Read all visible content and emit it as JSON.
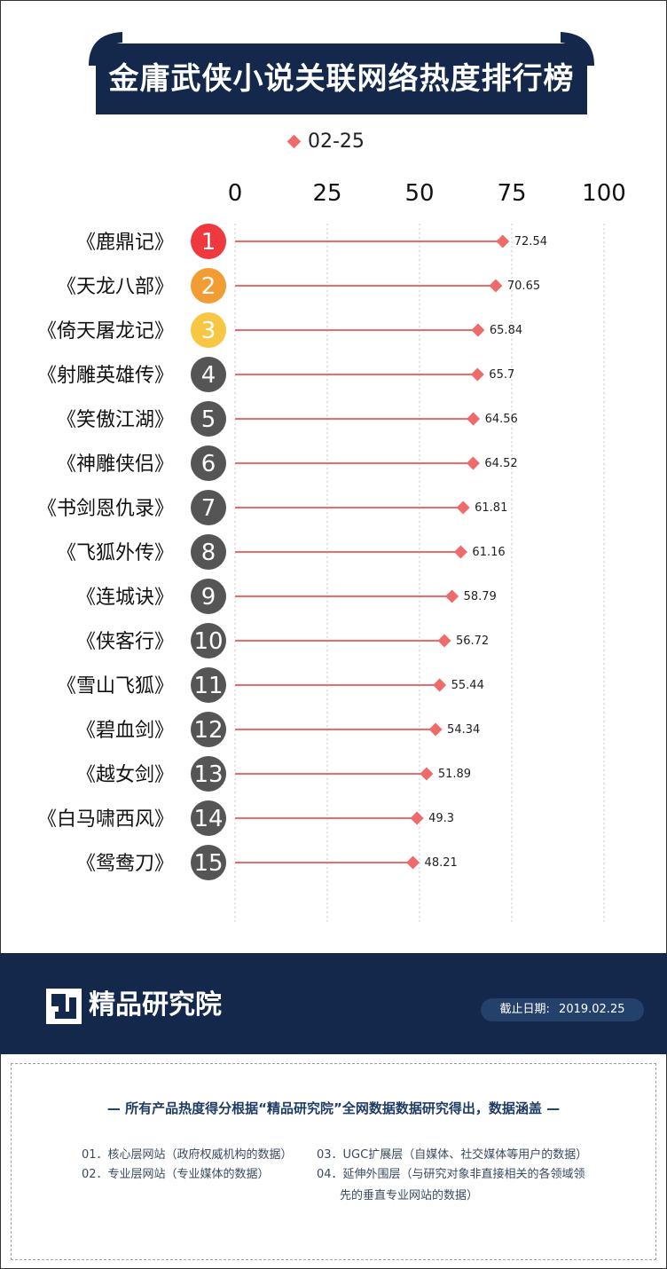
{
  "header": {
    "title": "金庸武侠小说关联网络热度排行榜"
  },
  "chart_data": {
    "type": "lollipop",
    "orientation": "horizontal",
    "xlim": [
      0,
      100
    ],
    "x_ticks": [
      "0",
      "25",
      "50",
      "75",
      "100"
    ],
    "legend": {
      "label": "02-25",
      "placement": "top"
    },
    "series": [
      {
        "name": "02-25",
        "color": "#ef6a6a",
        "points": [
          {
            "rank": "1",
            "category": "《鹿鼎记》",
            "value": 72.54,
            "label": "72.54"
          },
          {
            "rank": "2",
            "category": "《天龙八部》",
            "value": 70.65,
            "label": "70.65"
          },
          {
            "rank": "3",
            "category": "《倚天屠龙记》",
            "value": 65.84,
            "label": "65.84"
          },
          {
            "rank": "4",
            "category": "《射雕英雄传》",
            "value": 65.7,
            "label": "65.7"
          },
          {
            "rank": "5",
            "category": "《笑傲江湖》",
            "value": 64.56,
            "label": "64.56"
          },
          {
            "rank": "6",
            "category": "《神雕侠侣》",
            "value": 64.52,
            "label": "64.52"
          },
          {
            "rank": "7",
            "category": "《书剑恩仇录》",
            "value": 61.81,
            "label": "61.81"
          },
          {
            "rank": "8",
            "category": "《飞狐外传》",
            "value": 61.16,
            "label": "61.16"
          },
          {
            "rank": "9",
            "category": "《连城诀》",
            "value": 58.79,
            "label": "58.79"
          },
          {
            "rank": "10",
            "category": "《侠客行》",
            "value": 56.72,
            "label": "56.72"
          },
          {
            "rank": "11",
            "category": "《雪山飞狐》",
            "value": 55.44,
            "label": "55.44"
          },
          {
            "rank": "12",
            "category": "《碧血剑》",
            "value": 54.34,
            "label": "54.34"
          },
          {
            "rank": "13",
            "category": "《越女剑》",
            "value": 51.89,
            "label": "51.89"
          },
          {
            "rank": "14",
            "category": "《白马啸西风》",
            "value": 49.3,
            "label": "49.3"
          },
          {
            "rank": "15",
            "category": "《鸳鸯刀》",
            "value": 48.21,
            "label": "48.21"
          }
        ]
      }
    ],
    "rank_badge_colors": [
      "#f0383f",
      "#f39c33",
      "#f7c744",
      "#555555"
    ],
    "grid": "vertical-dotted"
  },
  "footer": {
    "brand": "精品研究院",
    "date_label": "截止日期:",
    "date_value": "2019.02.25"
  },
  "notes": {
    "heading": "— 所有产品热度得分根据“精品研究院”全网数据数据研究得出，数据涵盖 —",
    "item_01": "01．核心层网站（政府权威机构的数据）",
    "item_02": "02．专业层网站（专业媒体的数据）",
    "item_03": "03．UGC扩展层（自媒体、社交媒体等用户的数据）",
    "item_04_line1": "04．延伸外围层（与研究对象非直接相关的各领域领",
    "item_04_line2": "先的垂直专业网站的数据）"
  },
  "colors": {
    "navy": "#13284a",
    "accent": "#ef6a6a"
  }
}
